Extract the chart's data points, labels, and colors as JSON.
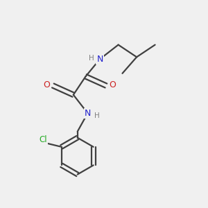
{
  "background_color": "#f0f0f0",
  "bond_color": "#404040",
  "atom_colors": {
    "N": "#2222cc",
    "O": "#cc2222",
    "Cl": "#22aa22",
    "H": "#808080",
    "C": "#404040"
  },
  "figsize": [
    3.0,
    3.0
  ],
  "dpi": 100
}
